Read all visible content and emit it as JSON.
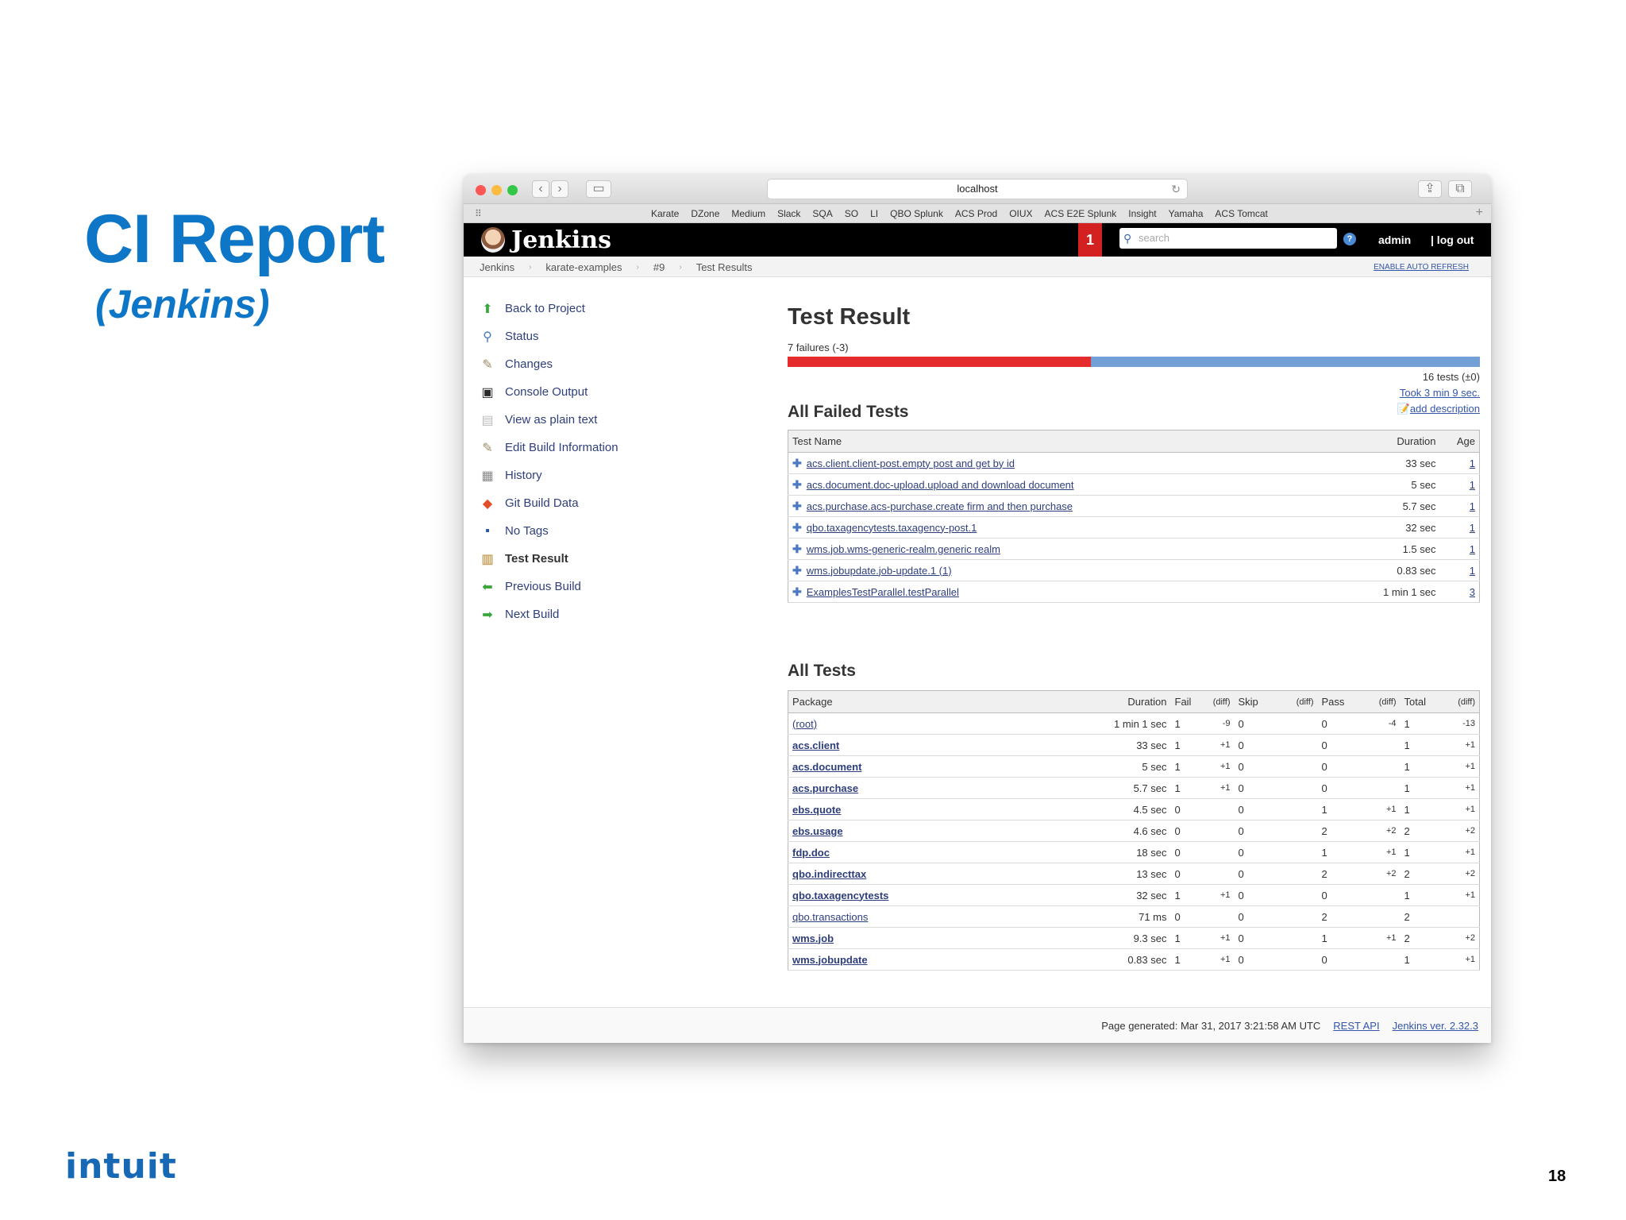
{
  "slide": {
    "title": "CI Report",
    "subtitle": "(Jenkins)",
    "logo": "intuit",
    "page_number": "18"
  },
  "browser": {
    "url": "localhost",
    "bookmarks": [
      "Karate",
      "DZone",
      "Medium",
      "Slack",
      "SQA",
      "SO",
      "LI",
      "QBO Splunk",
      "ACS Prod",
      "OIUX",
      "ACS E2E Splunk",
      "Insight",
      "Yamaha",
      "ACS Tomcat"
    ]
  },
  "jenkins": {
    "brand": "Jenkins",
    "notification_count": "1",
    "search_placeholder": "search",
    "user": "admin",
    "logout": "| log out",
    "breadcrumbs": [
      "Jenkins",
      "karate-examples",
      "#9",
      "Test Results"
    ],
    "auto_refresh": "ENABLE AUTO REFRESH"
  },
  "sidebar": {
    "items": [
      {
        "label": "Back to Project",
        "icon": "up-arrow-icon",
        "color": "#3aa53a"
      },
      {
        "label": "Status",
        "icon": "magnifier-icon",
        "color": "#4a7bc2"
      },
      {
        "label": "Changes",
        "icon": "notepad-icon",
        "color": "#9a8d6a"
      },
      {
        "label": "Console Output",
        "icon": "terminal-icon",
        "color": "#2a2a2a"
      },
      {
        "label": "View as plain text",
        "icon": "document-icon",
        "color": "#bbbbbb"
      },
      {
        "label": "Edit Build Information",
        "icon": "notepad-pencil-icon",
        "color": "#9a8d6a"
      },
      {
        "label": "History",
        "icon": "history-icon",
        "color": "#888888"
      },
      {
        "label": "Git Build Data",
        "icon": "git-icon",
        "color": "#e24e2b"
      },
      {
        "label": "No Tags",
        "icon": "floppy-icon",
        "color": "#2a55a0"
      },
      {
        "label": "Test Result",
        "icon": "clipboard-icon",
        "color": "#c9a86a"
      },
      {
        "label": "Previous Build",
        "icon": "left-arrow-icon",
        "color": "#3aa53a"
      },
      {
        "label": "Next Build",
        "icon": "right-arrow-icon",
        "color": "#3aa53a"
      }
    ]
  },
  "result": {
    "title": "Test Result",
    "failures_label": "7 failures (-3)",
    "fail_fraction": 0.4375,
    "total_tests": "16 tests (±0)",
    "took": "Took 3 min 9 sec.",
    "add_description": "add description"
  },
  "failed": {
    "title": "All Failed Tests",
    "headers": {
      "name": "Test Name",
      "duration": "Duration",
      "age": "Age"
    },
    "rows": [
      {
        "name": "acs.client.client-post.empty post and get by id",
        "duration": "33 sec",
        "age": "1"
      },
      {
        "name": "acs.document.doc-upload.upload and download document",
        "duration": "5 sec",
        "age": "1"
      },
      {
        "name": "acs.purchase.acs-purchase.create firm and then purchase",
        "duration": "5.7 sec",
        "age": "1"
      },
      {
        "name": "qbo.taxagencytests.taxagency-post.1",
        "duration": "32 sec",
        "age": "1"
      },
      {
        "name": "wms.job.wms-generic-realm.generic realm",
        "duration": "1.5 sec",
        "age": "1"
      },
      {
        "name": "wms.jobupdate.job-update.1 (1)",
        "duration": "0.83 sec",
        "age": "1"
      },
      {
        "name": "ExamplesTestParallel.testParallel",
        "duration": "1 min 1 sec",
        "age": "3"
      }
    ]
  },
  "all": {
    "title": "All Tests",
    "headers": {
      "package": "Package",
      "duration": "Duration",
      "fail": "Fail",
      "diff": "(diff)",
      "skip": "Skip",
      "pass": "Pass",
      "total": "Total"
    },
    "rows": [
      {
        "package": "(root)",
        "bold": false,
        "duration": "1 min 1 sec",
        "fail": "1",
        "fail_diff": "-9",
        "skip": "0",
        "skip_diff": "",
        "pass": "0",
        "pass_diff": "-4",
        "total": "1",
        "total_diff": "-13"
      },
      {
        "package": "acs.client",
        "bold": true,
        "duration": "33 sec",
        "fail": "1",
        "fail_diff": "+1",
        "skip": "0",
        "skip_diff": "",
        "pass": "0",
        "pass_diff": "",
        "total": "1",
        "total_diff": "+1"
      },
      {
        "package": "acs.document",
        "bold": true,
        "duration": "5 sec",
        "fail": "1",
        "fail_diff": "+1",
        "skip": "0",
        "skip_diff": "",
        "pass": "0",
        "pass_diff": "",
        "total": "1",
        "total_diff": "+1"
      },
      {
        "package": "acs.purchase",
        "bold": true,
        "duration": "5.7 sec",
        "fail": "1",
        "fail_diff": "+1",
        "skip": "0",
        "skip_diff": "",
        "pass": "0",
        "pass_diff": "",
        "total": "1",
        "total_diff": "+1"
      },
      {
        "package": "ebs.quote",
        "bold": true,
        "duration": "4.5 sec",
        "fail": "0",
        "fail_diff": "",
        "skip": "0",
        "skip_diff": "",
        "pass": "1",
        "pass_diff": "+1",
        "total": "1",
        "total_diff": "+1"
      },
      {
        "package": "ebs.usage",
        "bold": true,
        "duration": "4.6 sec",
        "fail": "0",
        "fail_diff": "",
        "skip": "0",
        "skip_diff": "",
        "pass": "2",
        "pass_diff": "+2",
        "total": "2",
        "total_diff": "+2"
      },
      {
        "package": "fdp.doc",
        "bold": true,
        "duration": "18 sec",
        "fail": "0",
        "fail_diff": "",
        "skip": "0",
        "skip_diff": "",
        "pass": "1",
        "pass_diff": "+1",
        "total": "1",
        "total_diff": "+1"
      },
      {
        "package": "qbo.indirecttax",
        "bold": true,
        "duration": "13 sec",
        "fail": "0",
        "fail_diff": "",
        "skip": "0",
        "skip_diff": "",
        "pass": "2",
        "pass_diff": "+2",
        "total": "2",
        "total_diff": "+2"
      },
      {
        "package": "qbo.taxagencytests",
        "bold": true,
        "duration": "32 sec",
        "fail": "1",
        "fail_diff": "+1",
        "skip": "0",
        "skip_diff": "",
        "pass": "0",
        "pass_diff": "",
        "total": "1",
        "total_diff": "+1"
      },
      {
        "package": "qbo.transactions",
        "bold": false,
        "duration": "71 ms",
        "fail": "0",
        "fail_diff": "",
        "skip": "0",
        "skip_diff": "",
        "pass": "2",
        "pass_diff": "",
        "total": "2",
        "total_diff": ""
      },
      {
        "package": "wms.job",
        "bold": true,
        "duration": "9.3 sec",
        "fail": "1",
        "fail_diff": "+1",
        "skip": "0",
        "skip_diff": "",
        "pass": "1",
        "pass_diff": "+1",
        "total": "2",
        "total_diff": "+2"
      },
      {
        "package": "wms.jobupdate",
        "bold": true,
        "duration": "0.83 sec",
        "fail": "1",
        "fail_diff": "+1",
        "skip": "0",
        "skip_diff": "",
        "pass": "0",
        "pass_diff": "",
        "total": "1",
        "total_diff": "+1"
      }
    ]
  },
  "footer": {
    "generated": "Page generated: Mar 31, 2017 3:21:58 AM UTC",
    "rest_api": "REST API",
    "version": "Jenkins ver. 2.32.3"
  }
}
